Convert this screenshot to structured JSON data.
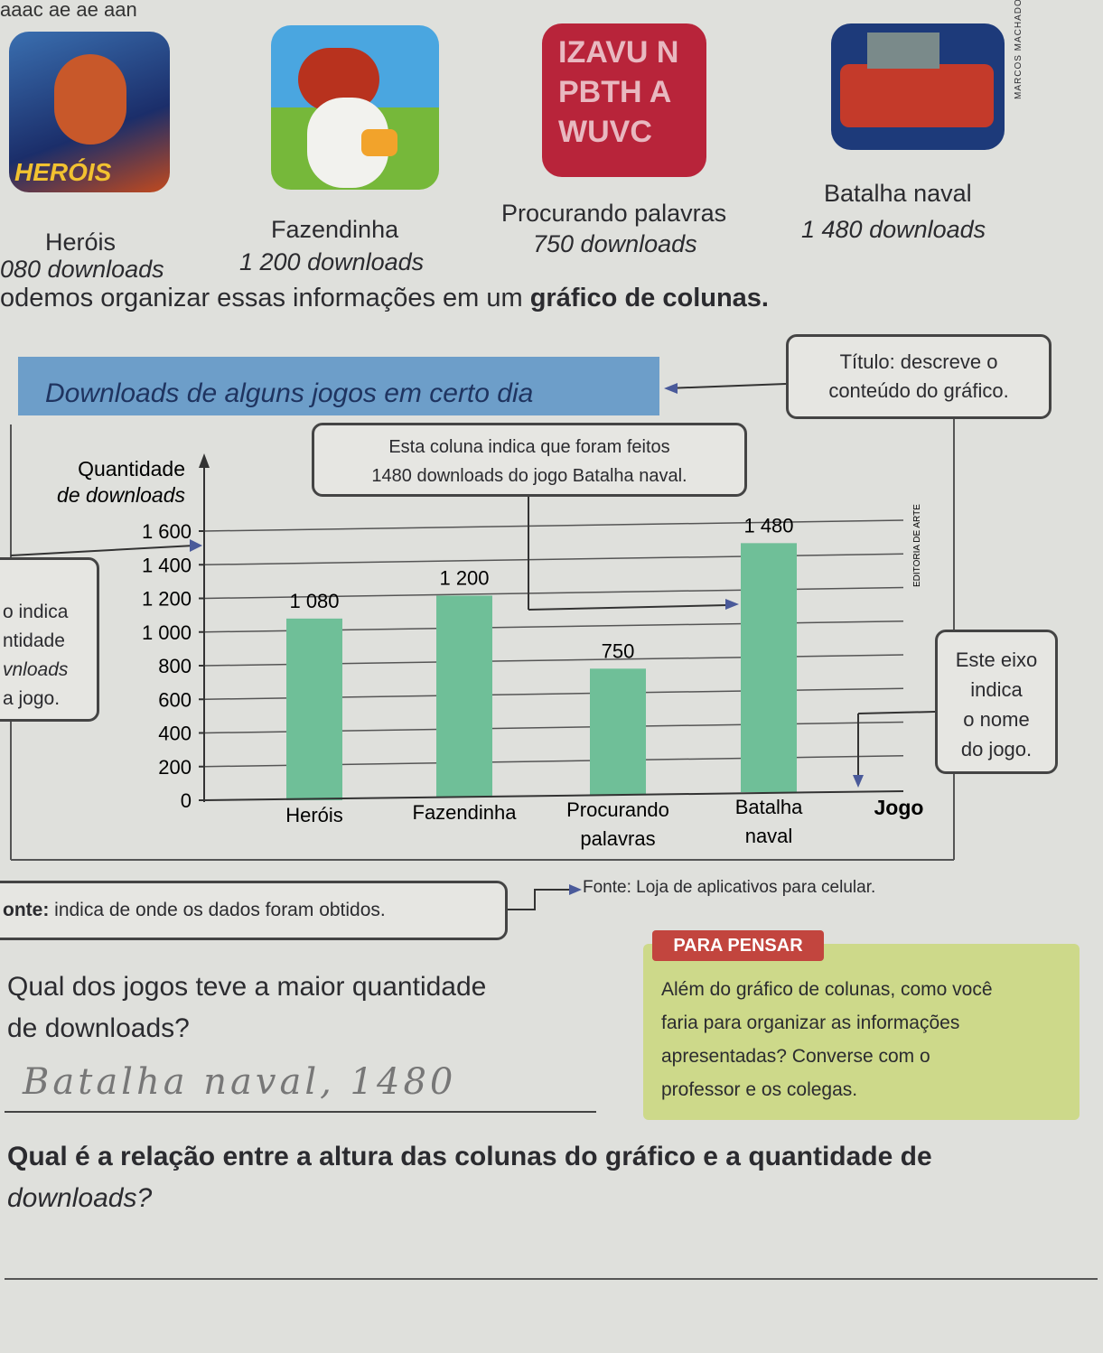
{
  "header_fragment": "aaac ae ae aan",
  "games": [
    {
      "name": "Heróis",
      "downloads": "080 downloads",
      "icon_text": "HERÓIS"
    },
    {
      "name": "Fazendinha",
      "downloads": "1 200 downloads"
    },
    {
      "name": "Procurando palavras",
      "downloads": "750 downloads",
      "icon_letters": "IZAVU NPBTH AWUVC"
    },
    {
      "name": "Batalha naval",
      "downloads": "1 480 downloads"
    }
  ],
  "credit_top": "MARCOS MACHADO",
  "intro": {
    "text": "odemos organizar essas informações em um ",
    "bold": "gráfico de colunas."
  },
  "chart_data": {
    "type": "bar",
    "title": "Downloads de alguns jogos em certo dia",
    "ylabel_line1": "Quantidade",
    "ylabel_line2": "de downloads",
    "xlabel": "Jogo",
    "categories": [
      [
        "Heróis"
      ],
      [
        "Fazendinha"
      ],
      [
        "Procurando",
        "palavras"
      ],
      [
        "Batalha",
        "naval"
      ]
    ],
    "values": [
      1080,
      1200,
      750,
      1480
    ],
    "value_labels": [
      "1 080",
      "1 200",
      "750",
      "1 480"
    ],
    "yticks": [
      "0",
      "200",
      "400",
      "600",
      "800",
      "1 000",
      "1 200",
      "1 400",
      "1 600"
    ],
    "ylim": [
      0,
      1600
    ],
    "grid": true,
    "bar_color": "#6fbf98",
    "title_color": "#6d9ec9",
    "credit": "EDITORIA DE ARTE"
  },
  "callouts": {
    "title": [
      "Título: descreve o",
      "conteúdo do gráfico."
    ],
    "column": [
      "Esta coluna indica que foram feitos",
      "1480 downloads do jogo Batalha naval."
    ],
    "yaxis": [
      "o indica",
      "ntidade",
      "vnloads",
      "a jogo."
    ],
    "xaxis": [
      "Este eixo",
      "indica",
      "o nome",
      "do jogo."
    ],
    "source_label": "onte:",
    "source_desc": " indica de onde os dados foram obtidos."
  },
  "source": "Fonte: Loja de aplicativos para celular.",
  "para_pensar": {
    "badge": "PARA PENSAR",
    "text": [
      "Além do gráfico de colunas, como você",
      "faria para organizar as informações",
      "apresentadas? Converse com o",
      "professor e os colegas."
    ]
  },
  "questions": [
    {
      "lines": [
        "Qual dos jogos teve a maior quantidade",
        "de downloads?"
      ],
      "answer": "Batalha naval, 1480"
    },
    {
      "lines": [
        "Qual é a relação entre a altura das colunas do gráfico e a quantidade de",
        "downloads?"
      ],
      "answer": ""
    }
  ]
}
